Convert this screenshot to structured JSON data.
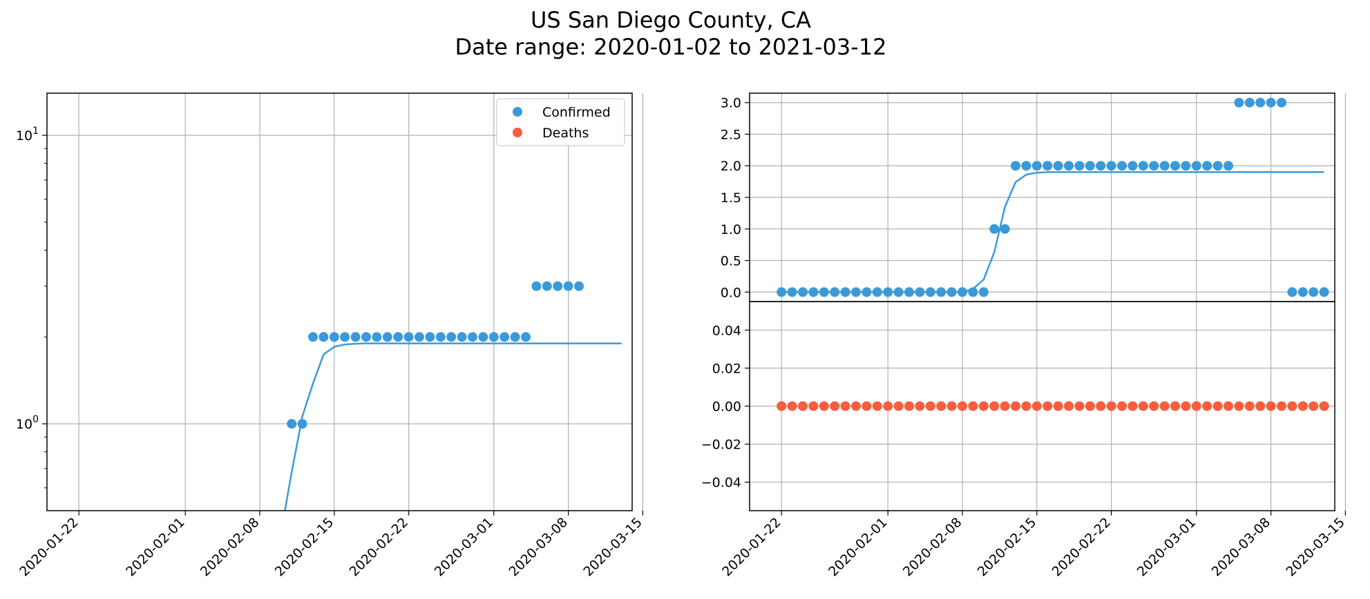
{
  "figure": {
    "title_line1": "US San Diego County, CA",
    "title_line2": "Date range: 2020-01-02 to 2021-03-12"
  },
  "colors": {
    "confirmed": "#3a9ad9",
    "deaths": "#f95d3e",
    "grid": "#b0b0b0",
    "axis": "#000000"
  },
  "chart_data": [
    {
      "type": "scatter",
      "panel": "left",
      "yscale": "log",
      "ylim": [
        0.5,
        14
      ],
      "xlim": [
        "2020-01-19",
        "2020-03-14"
      ],
      "x_ticks": [
        "2020-01-22",
        "2020-02-01",
        "2020-02-08",
        "2020-02-15",
        "2020-02-22",
        "2020-03-01",
        "2020-03-08",
        "2020-03-15"
      ],
      "y_ticks": [
        {
          "value": 1,
          "base": "10",
          "exp": "0"
        },
        {
          "value": 10,
          "base": "10",
          "exp": "1"
        }
      ],
      "grid": true,
      "legend": {
        "placement": "upper right",
        "entries": [
          "Confirmed",
          "Deaths"
        ]
      },
      "series": [
        {
          "name": "Confirmed",
          "points": [
            [
              "2020-02-11",
              1
            ],
            [
              "2020-02-12",
              1
            ],
            [
              "2020-02-13",
              2
            ],
            [
              "2020-02-14",
              2
            ],
            [
              "2020-02-15",
              2
            ],
            [
              "2020-02-16",
              2
            ],
            [
              "2020-02-17",
              2
            ],
            [
              "2020-02-18",
              2
            ],
            [
              "2020-02-19",
              2
            ],
            [
              "2020-02-20",
              2
            ],
            [
              "2020-02-21",
              2
            ],
            [
              "2020-02-22",
              2
            ],
            [
              "2020-02-23",
              2
            ],
            [
              "2020-02-24",
              2
            ],
            [
              "2020-02-25",
              2
            ],
            [
              "2020-02-26",
              2
            ],
            [
              "2020-02-27",
              2
            ],
            [
              "2020-02-28",
              2
            ],
            [
              "2020-02-29",
              2
            ],
            [
              "2020-03-01",
              2
            ],
            [
              "2020-03-02",
              2
            ],
            [
              "2020-03-03",
              2
            ],
            [
              "2020-03-04",
              2
            ],
            [
              "2020-03-05",
              3
            ],
            [
              "2020-03-06",
              3
            ],
            [
              "2020-03-07",
              3
            ],
            [
              "2020-03-08",
              3
            ],
            [
              "2020-03-09",
              3
            ]
          ],
          "fit": [
            [
              "2020-02-10",
              0.42
            ],
            [
              "2020-02-11",
              0.68
            ],
            [
              "2020-02-12",
              1.06
            ],
            [
              "2020-02-13",
              1.38
            ],
            [
              "2020-02-14",
              1.74
            ],
            [
              "2020-02-15",
              1.85
            ],
            [
              "2020-02-16",
              1.885
            ],
            [
              "2020-02-17",
              1.895
            ],
            [
              "2020-02-18",
              1.9
            ],
            [
              "2020-03-13",
              1.9
            ]
          ]
        }
      ]
    },
    {
      "type": "scatter",
      "panel": "right-top",
      "ylim": [
        -0.15,
        3.15
      ],
      "xlim": [
        "2020-01-19",
        "2020-03-14"
      ],
      "y_ticks": [
        "0.0",
        "0.5",
        "1.0",
        "1.5",
        "2.0",
        "2.5",
        "3.0"
      ],
      "grid": true,
      "series": [
        {
          "name": "Confirmed",
          "points": [
            [
              "2020-01-22",
              0
            ],
            [
              "2020-01-23",
              0
            ],
            [
              "2020-01-24",
              0
            ],
            [
              "2020-01-25",
              0
            ],
            [
              "2020-01-26",
              0
            ],
            [
              "2020-01-27",
              0
            ],
            [
              "2020-01-28",
              0
            ],
            [
              "2020-01-29",
              0
            ],
            [
              "2020-01-30",
              0
            ],
            [
              "2020-01-31",
              0
            ],
            [
              "2020-02-01",
              0
            ],
            [
              "2020-02-02",
              0
            ],
            [
              "2020-02-03",
              0
            ],
            [
              "2020-02-04",
              0
            ],
            [
              "2020-02-05",
              0
            ],
            [
              "2020-02-06",
              0
            ],
            [
              "2020-02-07",
              0
            ],
            [
              "2020-02-08",
              0
            ],
            [
              "2020-02-09",
              0
            ],
            [
              "2020-02-10",
              0
            ],
            [
              "2020-02-11",
              1
            ],
            [
              "2020-02-12",
              1
            ],
            [
              "2020-02-13",
              2
            ],
            [
              "2020-02-14",
              2
            ],
            [
              "2020-02-15",
              2
            ],
            [
              "2020-02-16",
              2
            ],
            [
              "2020-02-17",
              2
            ],
            [
              "2020-02-18",
              2
            ],
            [
              "2020-02-19",
              2
            ],
            [
              "2020-02-20",
              2
            ],
            [
              "2020-02-21",
              2
            ],
            [
              "2020-02-22",
              2
            ],
            [
              "2020-02-23",
              2
            ],
            [
              "2020-02-24",
              2
            ],
            [
              "2020-02-25",
              2
            ],
            [
              "2020-02-26",
              2
            ],
            [
              "2020-02-27",
              2
            ],
            [
              "2020-02-28",
              2
            ],
            [
              "2020-02-29",
              2
            ],
            [
              "2020-03-01",
              2
            ],
            [
              "2020-03-02",
              2
            ],
            [
              "2020-03-03",
              2
            ],
            [
              "2020-03-04",
              2
            ],
            [
              "2020-03-05",
              3
            ],
            [
              "2020-03-06",
              3
            ],
            [
              "2020-03-07",
              3
            ],
            [
              "2020-03-08",
              3
            ],
            [
              "2020-03-09",
              3
            ],
            [
              "2020-03-10",
              0
            ],
            [
              "2020-03-11",
              0
            ],
            [
              "2020-03-12",
              0
            ],
            [
              "2020-03-13",
              0
            ]
          ],
          "fit": [
            [
              "2020-01-22",
              0
            ],
            [
              "2020-02-08",
              0.0
            ],
            [
              "2020-02-09",
              0.05
            ],
            [
              "2020-02-10",
              0.2
            ],
            [
              "2020-02-11",
              0.63
            ],
            [
              "2020-02-12",
              1.35
            ],
            [
              "2020-02-13",
              1.74
            ],
            [
              "2020-02-14",
              1.86
            ],
            [
              "2020-02-15",
              1.89
            ],
            [
              "2020-02-16",
              1.9
            ],
            [
              "2020-03-13",
              1.9
            ]
          ]
        }
      ]
    },
    {
      "type": "scatter",
      "panel": "right-bottom",
      "ylim": [
        -0.055,
        0.055
      ],
      "xlim": [
        "2020-01-19",
        "2020-03-14"
      ],
      "x_ticks": [
        "2020-01-22",
        "2020-02-01",
        "2020-02-08",
        "2020-02-15",
        "2020-02-22",
        "2020-03-01",
        "2020-03-08",
        "2020-03-15"
      ],
      "y_ticks": [
        "−0.04",
        "−0.02",
        "0.00",
        "0.02",
        "0.04"
      ],
      "grid": true,
      "series": [
        {
          "name": "Deaths",
          "points": [
            [
              "2020-01-22",
              0
            ],
            [
              "2020-01-23",
              0
            ],
            [
              "2020-01-24",
              0
            ],
            [
              "2020-01-25",
              0
            ],
            [
              "2020-01-26",
              0
            ],
            [
              "2020-01-27",
              0
            ],
            [
              "2020-01-28",
              0
            ],
            [
              "2020-01-29",
              0
            ],
            [
              "2020-01-30",
              0
            ],
            [
              "2020-01-31",
              0
            ],
            [
              "2020-02-01",
              0
            ],
            [
              "2020-02-02",
              0
            ],
            [
              "2020-02-03",
              0
            ],
            [
              "2020-02-04",
              0
            ],
            [
              "2020-02-05",
              0
            ],
            [
              "2020-02-06",
              0
            ],
            [
              "2020-02-07",
              0
            ],
            [
              "2020-02-08",
              0
            ],
            [
              "2020-02-09",
              0
            ],
            [
              "2020-02-10",
              0
            ],
            [
              "2020-02-11",
              0
            ],
            [
              "2020-02-12",
              0
            ],
            [
              "2020-02-13",
              0
            ],
            [
              "2020-02-14",
              0
            ],
            [
              "2020-02-15",
              0
            ],
            [
              "2020-02-16",
              0
            ],
            [
              "2020-02-17",
              0
            ],
            [
              "2020-02-18",
              0
            ],
            [
              "2020-02-19",
              0
            ],
            [
              "2020-02-20",
              0
            ],
            [
              "2020-02-21",
              0
            ],
            [
              "2020-02-22",
              0
            ],
            [
              "2020-02-23",
              0
            ],
            [
              "2020-02-24",
              0
            ],
            [
              "2020-02-25",
              0
            ],
            [
              "2020-02-26",
              0
            ],
            [
              "2020-02-27",
              0
            ],
            [
              "2020-02-28",
              0
            ],
            [
              "2020-02-29",
              0
            ],
            [
              "2020-03-01",
              0
            ],
            [
              "2020-03-02",
              0
            ],
            [
              "2020-03-03",
              0
            ],
            [
              "2020-03-04",
              0
            ],
            [
              "2020-03-05",
              0
            ],
            [
              "2020-03-06",
              0
            ],
            [
              "2020-03-07",
              0
            ],
            [
              "2020-03-08",
              0
            ],
            [
              "2020-03-09",
              0
            ],
            [
              "2020-03-10",
              0
            ],
            [
              "2020-03-11",
              0
            ],
            [
              "2020-03-12",
              0
            ],
            [
              "2020-03-13",
              0
            ]
          ]
        }
      ]
    }
  ]
}
